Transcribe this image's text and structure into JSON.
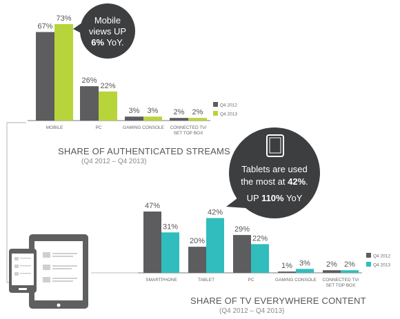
{
  "colors": {
    "q4_2012": "#5d5d5f",
    "q4_2013_top": "#b8d43b",
    "q4_2013_bottom": "#31bdbd",
    "bubble": "#3d3e40",
    "axis": "#777777",
    "connector": "#c9c9c9",
    "device": "#5e5f61"
  },
  "chart_data": [
    {
      "type": "bar",
      "title": "SHARE OF AUTHENTICATED STREAMS",
      "subtitle": "(Q4 2012 – Q4 2013)",
      "categories": [
        "MOBILE",
        "PC",
        "GAMING CONSOLE",
        "CONNECTED TV/ SET TOP BOX"
      ],
      "series": [
        {
          "name": "Q4 2012",
          "values": [
            67,
            26,
            3,
            2
          ],
          "labels": [
            "67%",
            "26%",
            "3%",
            "2%"
          ]
        },
        {
          "name": "Q4 2013",
          "values": [
            73,
            22,
            3,
            2
          ],
          "labels": [
            "73%",
            "22%",
            "3%",
            "2%"
          ]
        }
      ],
      "ylim": [
        0,
        73
      ],
      "grid": false,
      "legend": "right"
    },
    {
      "type": "bar",
      "title": "SHARE OF TV EVERYWHERE CONTENT",
      "subtitle": "(Q4 2012 – Q4 2013)",
      "categories": [
        "SMARTPHONE",
        "TABLET",
        "PC",
        "GAMING CONSOLE",
        "CONNECTED TV/ SET TOP BOX"
      ],
      "series": [
        {
          "name": "Q4 2012",
          "values": [
            47,
            20,
            29,
            1,
            2
          ],
          "labels": [
            "47%",
            "20%",
            "29%",
            "1%",
            "2%"
          ]
        },
        {
          "name": "Q4 2013",
          "values": [
            31,
            42,
            22,
            3,
            2
          ],
          "labels": [
            "31%",
            "42%",
            "22%",
            "3%",
            "2%"
          ]
        }
      ],
      "ylim": [
        0,
        47
      ],
      "grid": false,
      "legend": "right"
    }
  ],
  "callouts": {
    "mobile": {
      "line1": "Mobile",
      "line2": "views UP",
      "highlight": "6%",
      "suffix": " YoY."
    },
    "tablets": {
      "line1": "Tablets are used",
      "line2_pre": "the most at ",
      "line2_highlight": "42%",
      "line2_post": ".",
      "line3_pre": "UP ",
      "line3_highlight": "110%",
      "line3_post": " YoY"
    }
  },
  "icons": [
    "tablet-icon",
    "tablet-with-phone-icon"
  ]
}
